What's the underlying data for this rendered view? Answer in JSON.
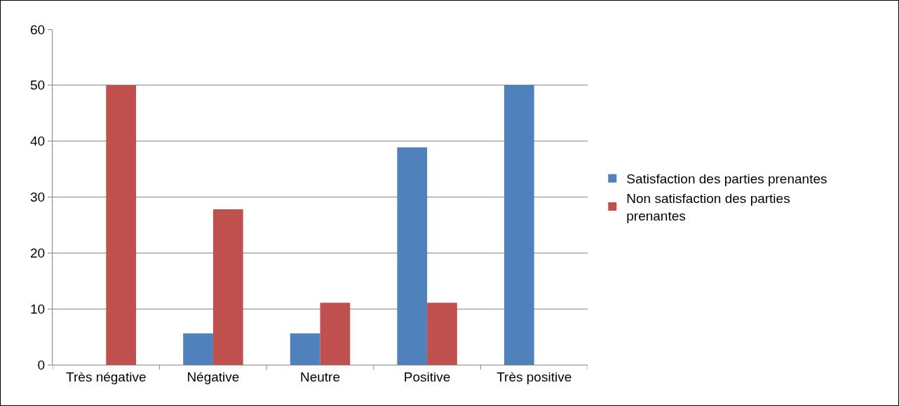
{
  "chart_data": {
    "type": "bar",
    "categories": [
      "Très négative",
      "Négative",
      "Neutre",
      "Positive",
      "Très positive"
    ],
    "series": [
      {
        "name": "Satisfaction des parties prenantes",
        "color": "#4f81bd",
        "values": [
          0,
          5.6,
          5.6,
          38.9,
          50
        ]
      },
      {
        "name": "Non satisfaction des parties prenantes",
        "color": "#c0504d",
        "values": [
          50,
          27.8,
          11.1,
          11.1,
          0
        ]
      }
    ],
    "ylim": [
      0,
      60
    ],
    "yticks": [
      0,
      10,
      20,
      30,
      40,
      50,
      60
    ],
    "grid": "y",
    "legend": "right"
  }
}
